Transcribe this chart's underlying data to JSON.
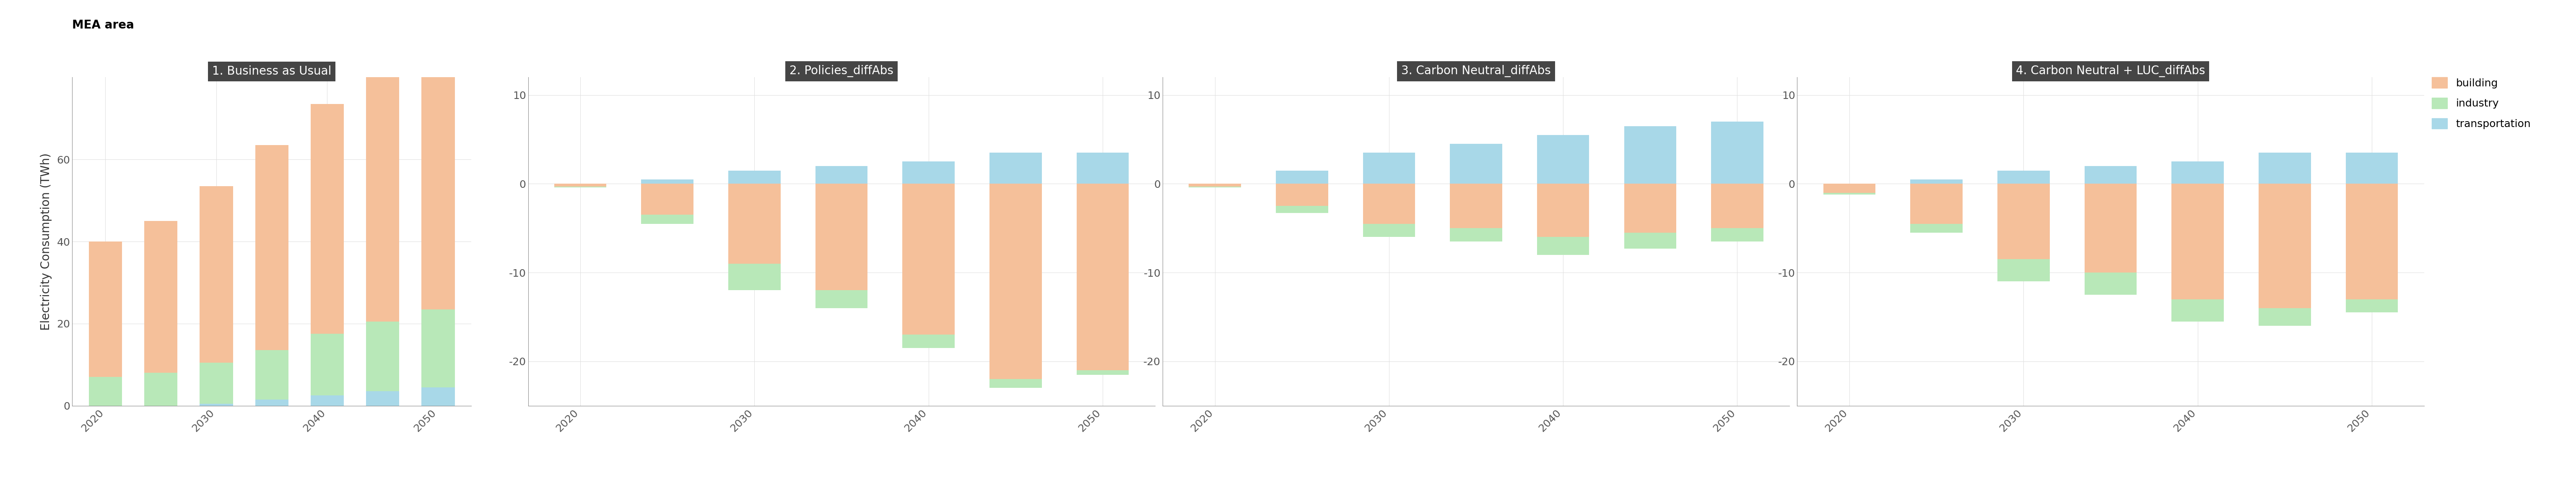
{
  "title": "MEA area",
  "ylabel": "Electricity Consumption (TWh)",
  "panel_titles": [
    "1. Business as Usual",
    "2. Policies_diffAbs",
    "3. Carbon Neutral_diffAbs",
    "4. Carbon Neutral + LUC_diffAbs"
  ],
  "years": [
    2020,
    2025,
    2030,
    2035,
    2040,
    2045,
    2050
  ],
  "colors": {
    "building": "#F5C09A",
    "industry": "#B8E8B8",
    "transportation": "#A8D8E8"
  },
  "panel1": {
    "building": [
      33,
      37,
      43,
      50,
      56,
      62,
      67
    ],
    "industry": [
      7,
      8,
      10,
      12,
      15,
      17,
      19
    ],
    "transportation": [
      0,
      0,
      0.5,
      1.5,
      2.5,
      3.5,
      4.5
    ]
  },
  "panel2": {
    "building": [
      -0.3,
      -3.5,
      -9.0,
      -12.0,
      -17.0,
      -22.0,
      -21.0
    ],
    "industry": [
      -0.1,
      -1.0,
      -3.0,
      -2.0,
      -1.5,
      -1.0,
      -0.5
    ],
    "transportation": [
      0.0,
      0.5,
      1.5,
      2.0,
      2.5,
      3.5,
      3.5
    ]
  },
  "panel3": {
    "building": [
      -0.3,
      -2.5,
      -4.5,
      -5.0,
      -6.0,
      -5.5,
      -5.0
    ],
    "industry": [
      -0.1,
      -0.8,
      -1.5,
      -1.5,
      -2.0,
      -1.8,
      -1.5
    ],
    "transportation": [
      0.0,
      1.5,
      3.5,
      4.5,
      5.5,
      6.5,
      7.0
    ]
  },
  "panel4": {
    "building": [
      -1.0,
      -4.5,
      -8.5,
      -10.0,
      -13.0,
      -14.0,
      -13.0
    ],
    "industry": [
      -0.2,
      -1.0,
      -2.5,
      -2.5,
      -2.5,
      -2.0,
      -1.5
    ],
    "transportation": [
      0.0,
      0.5,
      1.5,
      2.0,
      2.5,
      3.5,
      3.5
    ]
  },
  "panel1_ylim": [
    0,
    80
  ],
  "panel234_ylim": [
    -25,
    12
  ],
  "panel1_yticks": [
    0,
    20,
    40,
    60
  ],
  "panel234_yticks": [
    -20,
    -10,
    0,
    10
  ],
  "bar_width": 3.0,
  "header_color": "#454545",
  "header_text_color": "white",
  "bg_color": "white",
  "grid_color": "#E0E0E0"
}
